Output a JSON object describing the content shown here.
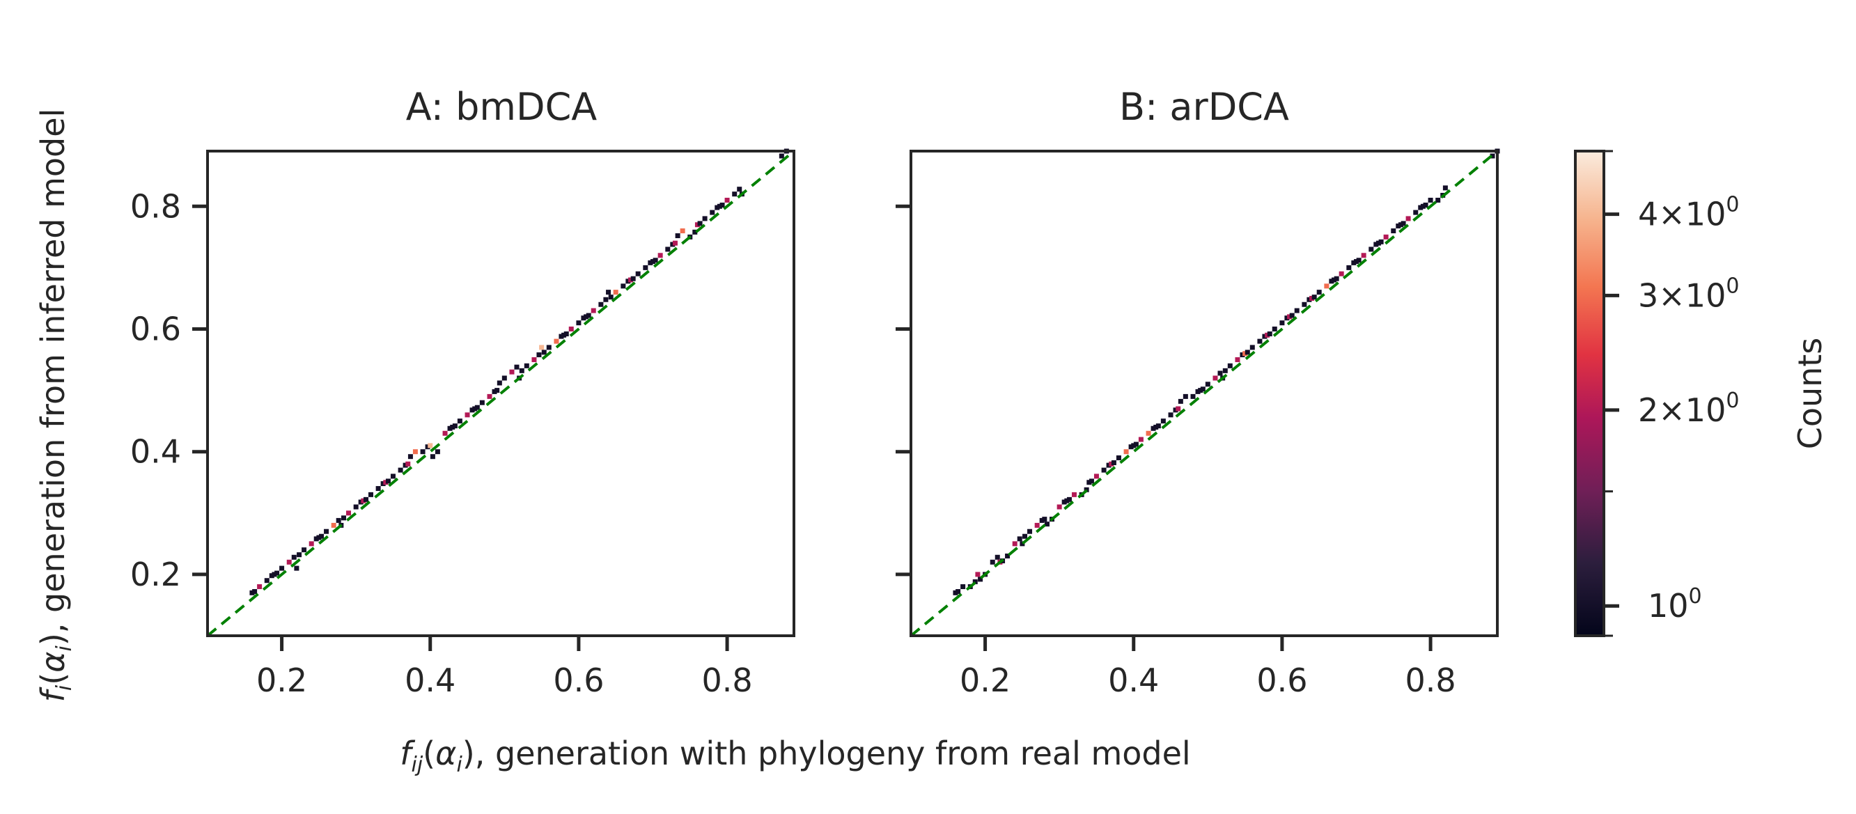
{
  "chart_data": [
    {
      "type": "heatmap",
      "panel": "A",
      "title": "A: bmDCA",
      "xlim": [
        0.1,
        0.89
      ],
      "ylim": [
        0.1,
        0.89
      ],
      "xticks": [
        "0.2",
        "0.4",
        "0.6",
        "0.8"
      ],
      "yticks": [
        "0.2",
        "0.4",
        "0.6",
        "0.8"
      ],
      "diagonal": "y = x dashed green",
      "points": [
        [
          0.16,
          0.17,
          1
        ],
        [
          0.17,
          0.18,
          2
        ],
        [
          0.18,
          0.19,
          1
        ],
        [
          0.19,
          0.2,
          1
        ],
        [
          0.2,
          0.21,
          1
        ],
        [
          0.21,
          0.22,
          2
        ],
        [
          0.22,
          0.21,
          1
        ],
        [
          0.23,
          0.24,
          1
        ],
        [
          0.24,
          0.25,
          2
        ],
        [
          0.25,
          0.26,
          1
        ],
        [
          0.26,
          0.27,
          1
        ],
        [
          0.27,
          0.28,
          3
        ],
        [
          0.28,
          0.28,
          1
        ],
        [
          0.29,
          0.3,
          2
        ],
        [
          0.3,
          0.31,
          1
        ],
        [
          0.31,
          0.32,
          2
        ],
        [
          0.32,
          0.33,
          1
        ],
        [
          0.33,
          0.34,
          1
        ],
        [
          0.34,
          0.35,
          2
        ],
        [
          0.35,
          0.36,
          1
        ],
        [
          0.36,
          0.37,
          1
        ],
        [
          0.37,
          0.38,
          2
        ],
        [
          0.38,
          0.4,
          3
        ],
        [
          0.39,
          0.4,
          1
        ],
        [
          0.4,
          0.41,
          4
        ],
        [
          0.41,
          0.4,
          1
        ],
        [
          0.42,
          0.43,
          2
        ],
        [
          0.43,
          0.44,
          1
        ],
        [
          0.44,
          0.45,
          1
        ],
        [
          0.45,
          0.46,
          2
        ],
        [
          0.46,
          0.47,
          1
        ],
        [
          0.47,
          0.48,
          1
        ],
        [
          0.48,
          0.49,
          2
        ],
        [
          0.49,
          0.5,
          1
        ],
        [
          0.5,
          0.52,
          1
        ],
        [
          0.51,
          0.53,
          2
        ],
        [
          0.52,
          0.52,
          1
        ],
        [
          0.53,
          0.54,
          1
        ],
        [
          0.54,
          0.55,
          2
        ],
        [
          0.55,
          0.57,
          4
        ],
        [
          0.56,
          0.57,
          1
        ],
        [
          0.57,
          0.58,
          3
        ],
        [
          0.58,
          0.59,
          1
        ],
        [
          0.59,
          0.6,
          2
        ],
        [
          0.6,
          0.61,
          1
        ],
        [
          0.61,
          0.62,
          1
        ],
        [
          0.62,
          0.63,
          2
        ],
        [
          0.63,
          0.64,
          1
        ],
        [
          0.64,
          0.66,
          1
        ],
        [
          0.65,
          0.66,
          3
        ],
        [
          0.66,
          0.67,
          1
        ],
        [
          0.67,
          0.68,
          2
        ],
        [
          0.68,
          0.69,
          1
        ],
        [
          0.69,
          0.7,
          1
        ],
        [
          0.7,
          0.71,
          1
        ],
        [
          0.71,
          0.72,
          2
        ],
        [
          0.72,
          0.73,
          1
        ],
        [
          0.73,
          0.74,
          2
        ],
        [
          0.74,
          0.76,
          3
        ],
        [
          0.75,
          0.75,
          1
        ],
        [
          0.76,
          0.77,
          2
        ],
        [
          0.77,
          0.78,
          1
        ],
        [
          0.78,
          0.79,
          1
        ],
        [
          0.79,
          0.8,
          1
        ],
        [
          0.8,
          0.81,
          2
        ],
        [
          0.81,
          0.82,
          1
        ],
        [
          0.82,
          0.82,
          1
        ],
        [
          0.88,
          0.89,
          1
        ]
      ]
    },
    {
      "type": "heatmap",
      "panel": "B",
      "title": "B: arDCA",
      "xlim": [
        0.1,
        0.89
      ],
      "ylim": [
        0.1,
        0.89
      ],
      "xticks": [
        "0.2",
        "0.4",
        "0.6",
        "0.8"
      ],
      "yticks": [
        "",
        "",
        "",
        ""
      ],
      "diagonal": "y = x dashed green",
      "points": [
        [
          0.16,
          0.17,
          1
        ],
        [
          0.17,
          0.18,
          1
        ],
        [
          0.18,
          0.18,
          1
        ],
        [
          0.19,
          0.2,
          2
        ],
        [
          0.2,
          0.2,
          1
        ],
        [
          0.21,
          0.22,
          1
        ],
        [
          0.22,
          0.22,
          2
        ],
        [
          0.23,
          0.23,
          1
        ],
        [
          0.24,
          0.25,
          2
        ],
        [
          0.25,
          0.25,
          1
        ],
        [
          0.26,
          0.27,
          1
        ],
        [
          0.27,
          0.28,
          2
        ],
        [
          0.28,
          0.29,
          1
        ],
        [
          0.29,
          0.29,
          1
        ],
        [
          0.3,
          0.31,
          2
        ],
        [
          0.31,
          0.32,
          1
        ],
        [
          0.32,
          0.33,
          2
        ],
        [
          0.33,
          0.33,
          1
        ],
        [
          0.34,
          0.35,
          1
        ],
        [
          0.35,
          0.36,
          2
        ],
        [
          0.36,
          0.37,
          1
        ],
        [
          0.37,
          0.38,
          2
        ],
        [
          0.38,
          0.39,
          1
        ],
        [
          0.39,
          0.4,
          3
        ],
        [
          0.4,
          0.41,
          1
        ],
        [
          0.41,
          0.42,
          2
        ],
        [
          0.42,
          0.43,
          3
        ],
        [
          0.43,
          0.44,
          1
        ],
        [
          0.44,
          0.45,
          1
        ],
        [
          0.45,
          0.46,
          1
        ],
        [
          0.46,
          0.47,
          2
        ],
        [
          0.47,
          0.49,
          1
        ],
        [
          0.48,
          0.49,
          1
        ],
        [
          0.49,
          0.5,
          1
        ],
        [
          0.5,
          0.51,
          1
        ],
        [
          0.51,
          0.52,
          2
        ],
        [
          0.52,
          0.52,
          1
        ],
        [
          0.53,
          0.54,
          1
        ],
        [
          0.54,
          0.55,
          2
        ],
        [
          0.55,
          0.56,
          3
        ],
        [
          0.56,
          0.57,
          1
        ],
        [
          0.57,
          0.58,
          1
        ],
        [
          0.58,
          0.59,
          2
        ],
        [
          0.59,
          0.6,
          1
        ],
        [
          0.6,
          0.61,
          1
        ],
        [
          0.61,
          0.62,
          2
        ],
        [
          0.62,
          0.63,
          1
        ],
        [
          0.63,
          0.64,
          1
        ],
        [
          0.64,
          0.65,
          2
        ],
        [
          0.65,
          0.66,
          1
        ],
        [
          0.66,
          0.67,
          3
        ],
        [
          0.67,
          0.68,
          1
        ],
        [
          0.68,
          0.69,
          2
        ],
        [
          0.69,
          0.7,
          1
        ],
        [
          0.7,
          0.71,
          1
        ],
        [
          0.71,
          0.72,
          2
        ],
        [
          0.72,
          0.73,
          1
        ],
        [
          0.73,
          0.74,
          1
        ],
        [
          0.74,
          0.75,
          2
        ],
        [
          0.75,
          0.76,
          1
        ],
        [
          0.76,
          0.77,
          1
        ],
        [
          0.77,
          0.78,
          2
        ],
        [
          0.78,
          0.79,
          1
        ],
        [
          0.79,
          0.8,
          1
        ],
        [
          0.8,
          0.81,
          1
        ],
        [
          0.81,
          0.81,
          1
        ],
        [
          0.82,
          0.83,
          1
        ],
        [
          0.89,
          0.89,
          1
        ]
      ]
    }
  ],
  "colorbar": {
    "label": "Counts",
    "scale": "log",
    "range": [
      0.9,
      5.0
    ],
    "ticks": [
      {
        "value": 1,
        "mantissa": "",
        "exponent": "0"
      },
      {
        "value": 2,
        "mantissa": "2",
        "exponent": "0"
      },
      {
        "value": 3,
        "mantissa": "3",
        "exponent": "0"
      },
      {
        "value": 4,
        "mantissa": "4",
        "exponent": "0"
      }
    ],
    "cmap": "rocket"
  },
  "labels": {
    "ylabel_f": "f",
    "ylabel_sub": "i",
    "ylabel_alpha": "α",
    "ylabel_alpha_sub": "i",
    "ylabel_rest": ", generation from inferred model",
    "xlabel_f": "f",
    "xlabel_sub": "ij",
    "xlabel_alpha": "α",
    "xlabel_alpha_sub": "i",
    "xlabel_rest": ", generation with phylogeny from real model"
  },
  "colors": {
    "diagonal": "#008000",
    "axes": "#262626"
  }
}
